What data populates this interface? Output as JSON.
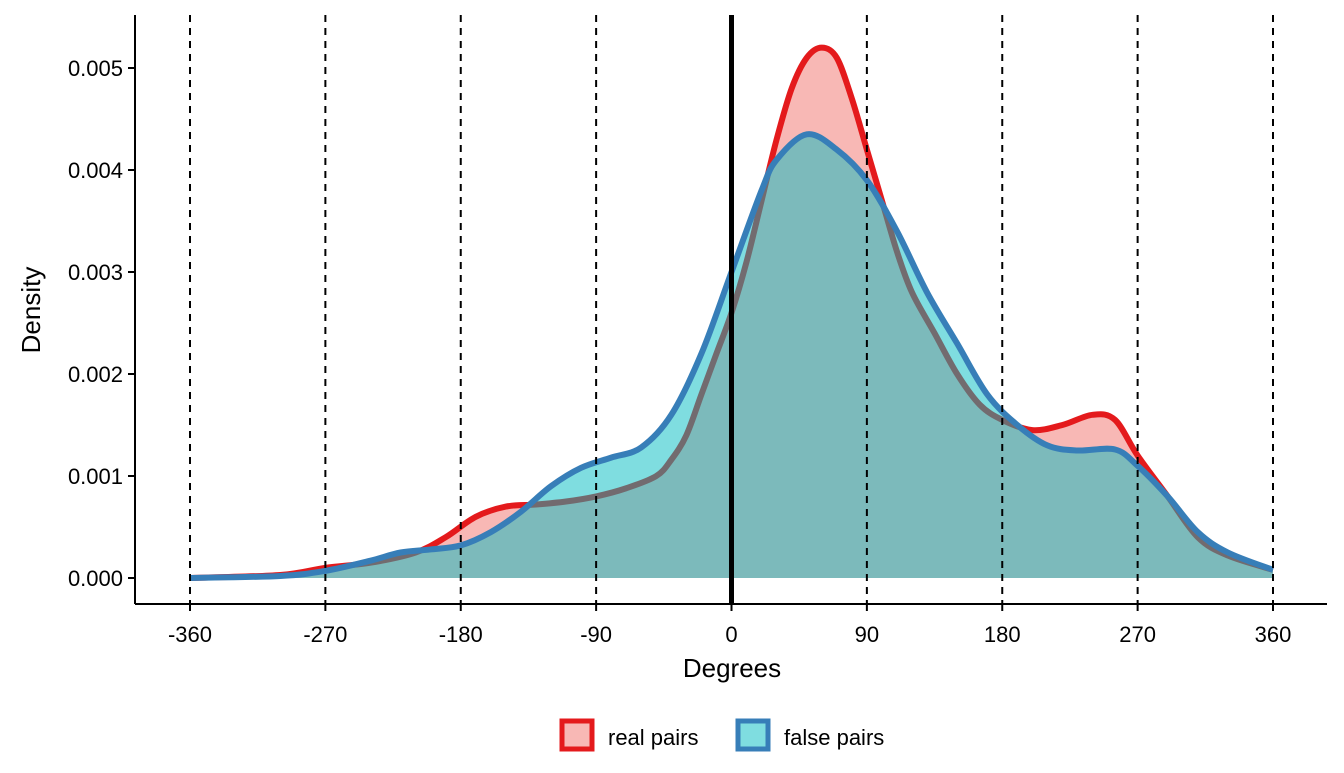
{
  "chart_data": {
    "type": "area",
    "title": "",
    "xlabel": "Degrees",
    "ylabel": "Density",
    "xlim": [
      -396,
      396
    ],
    "ylim": [
      0,
      0.0055
    ],
    "x_ticks": [
      -360,
      -270,
      -180,
      -90,
      0,
      90,
      180,
      270,
      360
    ],
    "x_tick_labels": [
      "-360",
      "-270",
      "-180",
      "-90",
      "0",
      "90",
      "180",
      "270",
      "360"
    ],
    "y_ticks": [
      0,
      0.001,
      0.002,
      0.003,
      0.004,
      0.005
    ],
    "y_tick_labels": [
      "0.000",
      "0.001",
      "0.002",
      "0.003",
      "0.004",
      "0.005"
    ],
    "vlines_dashed": [
      -360,
      -270,
      -180,
      -90,
      90,
      180,
      270,
      360
    ],
    "vline_solid": 0,
    "grid": false,
    "legend_position": "bottom",
    "series": [
      {
        "name": "real pairs",
        "line_color": "#e41a1c",
        "fill_color": "#f1716b",
        "x": [
          -360,
          -300,
          -270,
          -240,
          -210,
          -190,
          -170,
          -150,
          -130,
          -110,
          -90,
          -70,
          -50,
          -40,
          -30,
          -20,
          -10,
          0,
          10,
          20,
          30,
          40,
          50,
          60,
          70,
          80,
          90,
          100,
          110,
          120,
          135,
          150,
          165,
          180,
          200,
          220,
          240,
          255,
          270,
          290,
          310,
          330,
          360
        ],
        "y": [
          0,
          3e-05,
          0.0001,
          0.00015,
          0.00025,
          0.0004,
          0.0006,
          0.0007,
          0.00072,
          0.00075,
          0.0008,
          0.00088,
          0.001,
          0.00116,
          0.0014,
          0.0018,
          0.0022,
          0.0026,
          0.0031,
          0.0037,
          0.0043,
          0.0048,
          0.0051,
          0.0052,
          0.0051,
          0.0047,
          0.0042,
          0.0037,
          0.0032,
          0.0028,
          0.0024,
          0.002,
          0.0017,
          0.00155,
          0.00145,
          0.0015,
          0.0016,
          0.00155,
          0.0012,
          0.0008,
          0.0004,
          0.00022,
          8e-05
        ]
      },
      {
        "name": "false pairs",
        "line_color": "#377eb8",
        "fill_color": "#00bbc1",
        "x": [
          -360,
          -300,
          -270,
          -240,
          -220,
          -200,
          -180,
          -160,
          -140,
          -120,
          -100,
          -80,
          -60,
          -40,
          -20,
          0,
          20,
          30,
          50,
          70,
          90,
          110,
          130,
          150,
          170,
          190,
          210,
          230,
          255,
          270,
          290,
          310,
          330,
          360
        ],
        "y": [
          0,
          2e-05,
          7e-05,
          0.00017,
          0.00025,
          0.00028,
          0.00032,
          0.00045,
          0.00065,
          0.0009,
          0.00108,
          0.00118,
          0.00128,
          0.0016,
          0.0022,
          0.003,
          0.0038,
          0.0041,
          0.00435,
          0.0042,
          0.0039,
          0.0034,
          0.0028,
          0.0023,
          0.0018,
          0.0015,
          0.0013,
          0.00125,
          0.00126,
          0.0011,
          0.0008,
          0.00045,
          0.00025,
          8e-05
        ]
      }
    ]
  }
}
